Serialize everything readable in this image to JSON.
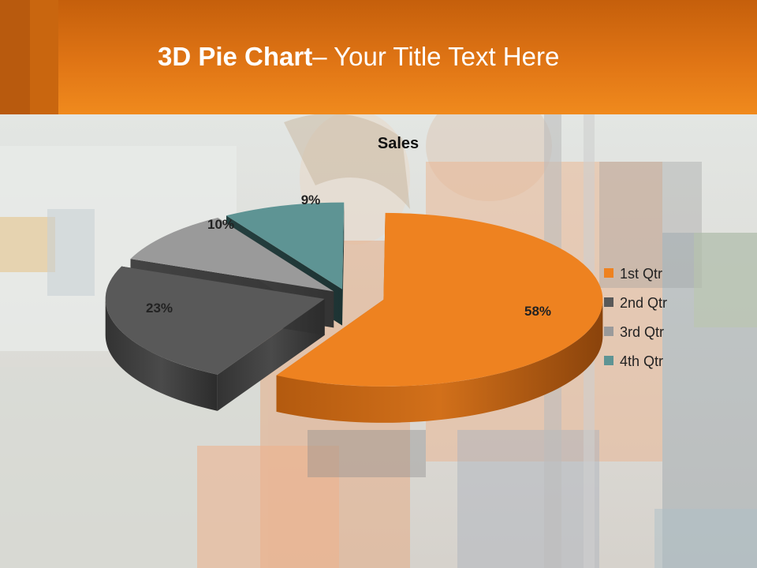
{
  "slide": {
    "title_bold": "3D Pie Chart",
    "title_rest": "– Your Title Text Here"
  },
  "chart_data": {
    "type": "pie",
    "title": "Sales",
    "categories": [
      "1st Qtr",
      "2nd Qtr",
      "3rd Qtr",
      "4th Qtr"
    ],
    "values": [
      58,
      23,
      10,
      9
    ],
    "labels": [
      "58%",
      "23%",
      "10%",
      "9%"
    ],
    "legend": "right",
    "exploded": true,
    "three_d": true,
    "colors": [
      "#ee8220",
      "#595959",
      "#9a9a9a",
      "#5e9494"
    ]
  }
}
